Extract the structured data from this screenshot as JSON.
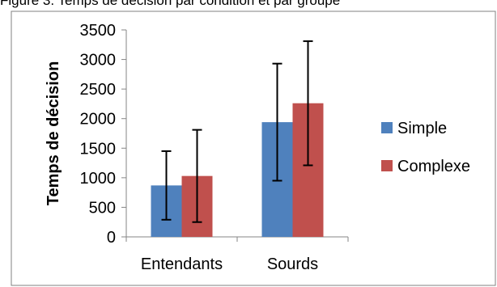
{
  "caption_fragment": "Figure 3. Temps de décision par condition et par groupe",
  "chart_data": {
    "type": "bar",
    "title": "",
    "xlabel": "",
    "ylabel": "Temps de décision",
    "categories": [
      "Entendants",
      "Sourds"
    ],
    "series": [
      {
        "name": "Simple",
        "values": [
          870,
          1940
        ],
        "error": [
          580,
          990
        ],
        "color": "#4f81bd"
      },
      {
        "name": "Complexe",
        "values": [
          1030,
          2260
        ],
        "error": [
          780,
          1050
        ],
        "color": "#c0504d"
      }
    ],
    "ylim": [
      0,
      3500
    ],
    "yticks": [
      0,
      500,
      1000,
      1500,
      2000,
      2500,
      3000,
      3500
    ],
    "grid": false,
    "legend_position": "right"
  }
}
